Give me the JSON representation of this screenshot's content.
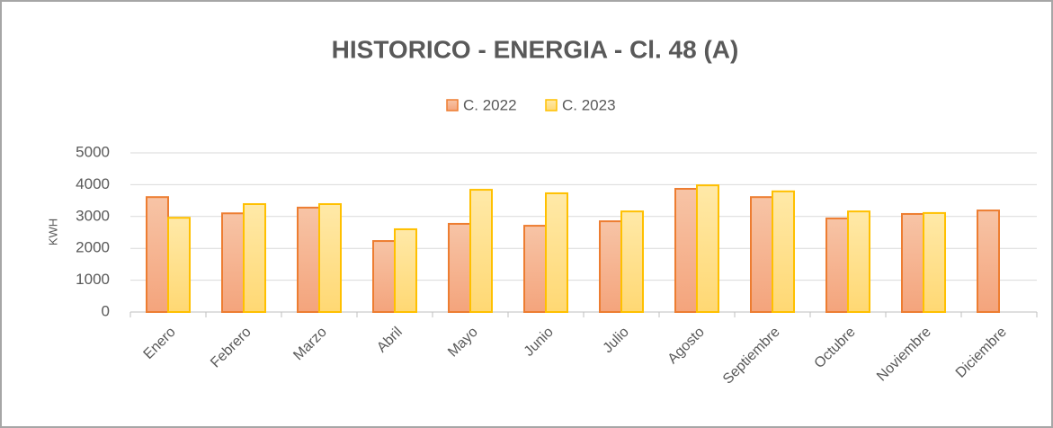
{
  "chart_data": {
    "type": "bar",
    "title": "HISTORICO  - ENERGIA  - Cl. 48 (A)",
    "y_label": "KWH",
    "categories": [
      "Enero",
      "Febrero",
      "Marzo",
      "Abril",
      "Mayo",
      "Junio",
      "Julio",
      "Agosto",
      "Septiembre",
      "Octubre",
      "Noviembre",
      "Diciembre"
    ],
    "series": [
      {
        "name": "C. 2022",
        "color": "#ed7d31",
        "values": [
          3610,
          3100,
          3280,
          2230,
          2770,
          2710,
          2850,
          3870,
          3610,
          2940,
          3080,
          3190
        ]
      },
      {
        "name": "C. 2023",
        "color": "#ffc000",
        "values": [
          2960,
          3390,
          3390,
          2600,
          3840,
          3730,
          3160,
          3980,
          3790,
          3160,
          3110,
          null
        ]
      }
    ],
    "ylim": [
      0,
      5000
    ],
    "yticks": [
      0,
      1000,
      2000,
      3000,
      4000,
      5000
    ],
    "grid": true,
    "legend": "top"
  }
}
